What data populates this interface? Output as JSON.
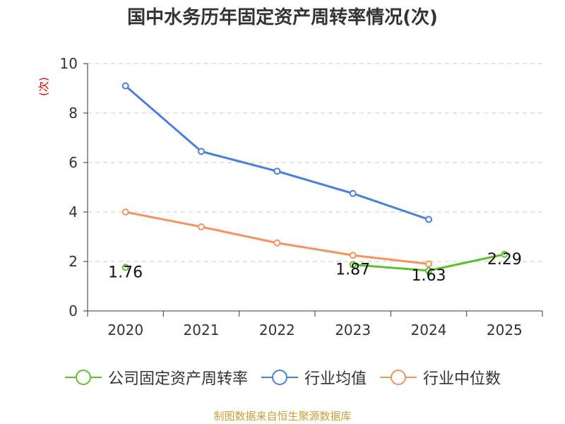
{
  "chart_data": {
    "type": "line",
    "title": "国中水务历年固定资产周转率情况(次)",
    "ylabel": "(次)",
    "xlabel": "",
    "categories": [
      "2020",
      "2021",
      "2022",
      "2023",
      "2024",
      "2025"
    ],
    "ylim": [
      0,
      10
    ],
    "yticks": [
      0,
      2,
      4,
      6,
      8,
      10
    ],
    "grid": true,
    "legend_position": "bottom",
    "series": [
      {
        "name": "公司固定资产周转率",
        "color": "#5cc02f",
        "values": [
          1.76,
          null,
          null,
          1.87,
          1.63,
          2.29
        ],
        "labels": [
          "1.76",
          null,
          null,
          "1.87",
          "1.63",
          "2.29"
        ]
      },
      {
        "name": "行业均值",
        "color": "#4a7fdc",
        "values": [
          9.1,
          6.45,
          5.65,
          4.75,
          3.7,
          null
        ]
      },
      {
        "name": "行业中位数",
        "color": "#f5925e",
        "values": [
          4.0,
          3.4,
          2.75,
          2.25,
          1.9,
          null
        ]
      }
    ]
  },
  "footer": {
    "source": "制图数据来自恒生聚源数据库"
  }
}
